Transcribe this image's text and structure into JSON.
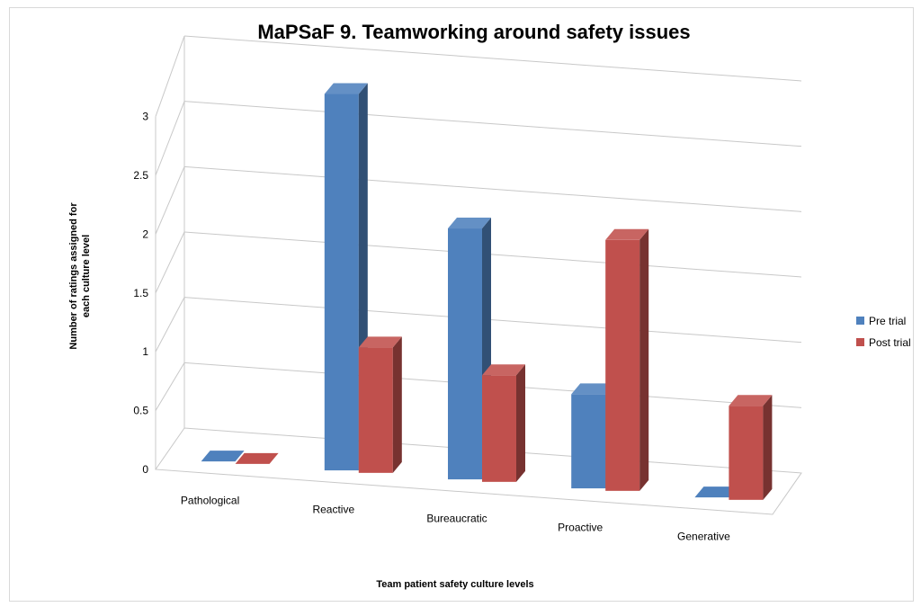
{
  "chart_data": {
    "type": "bar",
    "title": "MaPSaF 9. Teamworking around safety issues",
    "xlabel": "Team patient safety culture levels",
    "ylabel_lines": [
      "Number of ratings assigned for",
      "each culture level"
    ],
    "categories": [
      "Pathological",
      "Reactive",
      "Bureaucratic",
      "Proactive",
      "Generative"
    ],
    "yticks": [
      "0",
      "0.5",
      "1",
      "1.5",
      "2",
      "2.5",
      "3"
    ],
    "ylim": [
      0,
      3
    ],
    "grid": true,
    "legend_position": "right",
    "series": [
      {
        "name": "Pre trial",
        "values": [
          0,
          3,
          2,
          0.75,
          0
        ],
        "color": "#4F81BD"
      },
      {
        "name": "Post trial",
        "values": [
          0,
          1,
          0.85,
          2,
          0.75
        ],
        "color": "#C0504D"
      }
    ]
  }
}
